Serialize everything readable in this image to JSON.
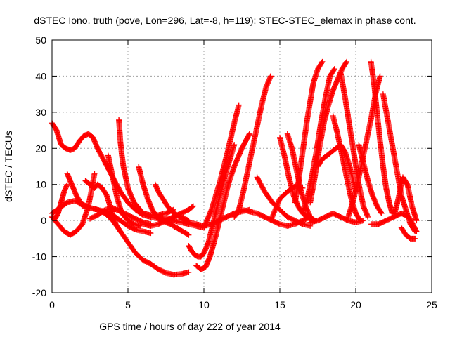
{
  "chart_data": {
    "type": "scatter",
    "title": "dSTEC Iono. truth (pove, Lon=296, Lat=-8, h=119): STEC-STEC_elemax in phase cont.",
    "xlabel": "GPS time / hours of day 222 of year 2014",
    "ylabel": "dSTEC  / TECUs",
    "xlim": [
      0,
      25
    ],
    "ylim": [
      -20,
      50
    ],
    "xticks": [
      0,
      5,
      10,
      15,
      20,
      25
    ],
    "yticks": [
      -20,
      -10,
      0,
      10,
      20,
      30,
      40,
      50
    ],
    "grid": true,
    "legend": "none",
    "marker": "plus",
    "color": "#ff0000",
    "series": [
      {
        "x": [
          0.0,
          0.3,
          0.6,
          0.9,
          1.2,
          1.5,
          1.8,
          2.1,
          2.4,
          2.7,
          3.0,
          3.5,
          4.0,
          4.5,
          5.0,
          5.5,
          6.0,
          6.5,
          7.0,
          7.5,
          8.0
        ],
        "y": [
          27,
          25,
          21,
          20,
          19.5,
          20,
          22,
          23.5,
          24,
          23,
          20,
          16,
          12,
          8,
          5,
          3,
          1.5,
          1,
          0.5,
          0.3,
          0.2
        ]
      },
      {
        "x": [
          0.0,
          0.2,
          0.4,
          0.6,
          0.8,
          1.0
        ],
        "y": [
          1,
          0.5,
          2,
          5,
          8,
          10
        ]
      },
      {
        "x": [
          0.0,
          0.5,
          1.0,
          1.5,
          2.0,
          2.5,
          3.0,
          3.5,
          4.0,
          4.5,
          5.0,
          5.5,
          6.0,
          6.5,
          7.0,
          7.5,
          8.0,
          8.5,
          9.0
        ],
        "y": [
          2,
          3.5,
          5,
          5.5,
          4.5,
          3.5,
          3,
          2,
          0,
          -3,
          -6,
          -9,
          -11,
          -12,
          -13.5,
          -14.5,
          -15,
          -14.8,
          -14.3
        ]
      },
      {
        "x": [
          0.0,
          0.4,
          0.8,
          1.2,
          1.6,
          2.0,
          2.4,
          2.8
        ],
        "y": [
          1,
          -1,
          -3,
          -4,
          -3,
          -1,
          4,
          13
        ]
      },
      {
        "x": [
          1.0,
          1.3,
          1.6,
          2.0,
          2.5,
          3.0,
          3.5,
          4.0,
          4.5,
          5.0,
          5.5,
          6.0,
          6.5
        ],
        "y": [
          13,
          10,
          7,
          4,
          3.5,
          3,
          2.5,
          1.5,
          0,
          -1.5,
          -2.5,
          -3,
          -3.5
        ]
      },
      {
        "x": [
          2.2,
          2.5,
          2.8,
          3.0,
          3.3,
          3.6,
          3.9,
          4.2,
          4.5
        ],
        "y": [
          11,
          10,
          9,
          10,
          9,
          7,
          3,
          -1,
          -3
        ]
      },
      {
        "x": [
          2.5,
          3.0,
          3.5,
          4.0,
          4.5,
          5.0,
          5.5,
          6.0,
          6.5
        ],
        "y": [
          0.5,
          1.5,
          3,
          3.5,
          2.5,
          1.5,
          0.5,
          -0.5,
          -1
        ]
      },
      {
        "x": [
          3.7,
          4.0,
          4.3,
          4.6,
          5.0,
          5.4,
          5.8
        ],
        "y": [
          18,
          12,
          6,
          2,
          0,
          -1,
          -1.5
        ]
      },
      {
        "x": [
          4.4,
          4.5,
          4.6,
          4.7,
          4.8,
          4.9,
          5.0,
          5.2,
          5.4,
          5.6,
          5.8,
          6.0,
          6.5,
          7.0,
          7.5,
          8.0
        ],
        "y": [
          28,
          22,
          18,
          15,
          13,
          11,
          9,
          7,
          5,
          4,
          3,
          2,
          1.5,
          1.5,
          2,
          3
        ]
      },
      {
        "x": [
          5.7,
          6.0,
          6.3,
          6.6,
          6.9,
          7.2,
          7.5,
          7.8,
          8.2,
          8.6,
          9.0
        ],
        "y": [
          15,
          10,
          6,
          3,
          1,
          0,
          -0.5,
          -1,
          -2,
          -3,
          -4
        ]
      },
      {
        "x": [
          6.0,
          6.5,
          7.0,
          7.5,
          8.0,
          8.5,
          9.0,
          9.3
        ],
        "y": [
          -1,
          -1.5,
          -1,
          0,
          1,
          2,
          3,
          4
        ]
      },
      {
        "x": [
          6.8,
          7.0,
          7.3,
          7.6,
          8.0,
          8.5,
          9.0
        ],
        "y": [
          10,
          8,
          6,
          4,
          2,
          1,
          0
        ]
      },
      {
        "x": [
          7.0,
          7.5,
          8.0,
          8.5,
          9.0,
          9.5,
          10.0,
          10.5,
          11.0,
          11.5,
          12.0,
          12.3
        ],
        "y": [
          1,
          0.5,
          0,
          -0.5,
          -1,
          -1.5,
          -2,
          3,
          10,
          18,
          27,
          32
        ]
      },
      {
        "x": [
          9.0,
          9.2,
          9.4,
          9.6,
          9.8,
          10.0,
          10.3,
          10.6,
          11.0,
          11.5,
          12.0
        ],
        "y": [
          -7,
          -8.5,
          -9.5,
          -10,
          -10,
          -9,
          -6,
          -1,
          6,
          14,
          21
        ]
      },
      {
        "x": [
          9.5,
          9.8,
          10.1,
          10.4,
          10.8,
          11.2,
          11.6,
          12.0,
          12.5,
          13.0
        ],
        "y": [
          -12.5,
          -13.5,
          -13,
          -10,
          -4,
          3,
          10,
          15,
          20,
          24
        ]
      },
      {
        "x": [
          8.5,
          9.0,
          9.5,
          10.0,
          10.5,
          11.0,
          11.5,
          12.0,
          12.5,
          13.0
        ],
        "y": [
          0.5,
          -0.5,
          -1,
          -1.5,
          -1,
          0,
          1,
          2,
          2.5,
          3
        ]
      },
      {
        "x": [
          12.0,
          12.3,
          12.6,
          12.9,
          13.2,
          13.5,
          13.8,
          14.1,
          14.4
        ],
        "y": [
          1,
          3,
          8,
          14,
          20,
          26,
          32,
          37,
          40
        ]
      },
      {
        "x": [
          12.5,
          13.0,
          13.5,
          14.0,
          14.5,
          15.0,
          15.5,
          16.0,
          16.5,
          17.0
        ],
        "y": [
          3,
          2.5,
          2,
          1,
          0,
          -1,
          -1.5,
          -1,
          0,
          1
        ]
      },
      {
        "x": [
          13.5,
          14.0,
          14.5,
          15.0,
          15.5,
          16.0,
          16.5,
          17.0
        ],
        "y": [
          12,
          8,
          5,
          3,
          1,
          0,
          -1,
          -1.5
        ]
      },
      {
        "x": [
          14.5,
          15.0,
          15.5,
          16.0,
          16.5
        ],
        "y": [
          1,
          6,
          8,
          9.5,
          9
        ]
      },
      {
        "x": [
          15.0,
          15.3,
          15.6,
          15.9,
          16.2,
          16.5,
          16.8,
          17.1,
          17.4
        ],
        "y": [
          23,
          18,
          12,
          7,
          4,
          2,
          1,
          0,
          0
        ]
      },
      {
        "x": [
          15.5,
          15.8,
          16.1,
          16.4,
          16.7,
          17.0,
          17.3
        ],
        "y": [
          24,
          20,
          14,
          8,
          4,
          1,
          0
        ]
      },
      {
        "x": [
          16.0,
          16.2,
          16.4,
          16.6,
          16.8,
          17.0,
          17.2,
          17.5,
          17.8
        ],
        "y": [
          5,
          10,
          16,
          22,
          28,
          33,
          38,
          42,
          44
        ]
      },
      {
        "x": [
          16.5,
          16.8,
          17.1,
          17.4,
          17.7,
          18.0,
          18.3,
          18.6
        ],
        "y": [
          2,
          6,
          12,
          19,
          27,
          34,
          40,
          42
        ]
      },
      {
        "x": [
          17.0,
          17.3,
          17.6,
          17.9,
          18.2,
          18.5,
          18.8,
          19.1,
          19.4
        ],
        "y": [
          5,
          12,
          20,
          27,
          32,
          36,
          39,
          42,
          44
        ]
      },
      {
        "x": [
          17.5,
          17.8,
          18.1,
          18.4,
          18.7,
          19.0,
          19.3,
          19.6,
          20.0
        ],
        "y": [
          15,
          17,
          18,
          19,
          20,
          21,
          19,
          15,
          8
        ]
      },
      {
        "x": [
          18.5,
          18.8,
          19.1,
          19.4,
          19.7,
          20.0,
          20.3
        ],
        "y": [
          29,
          24,
          18,
          12,
          6,
          2,
          0
        ]
      },
      {
        "x": [
          19.0,
          19.3,
          19.6,
          19.9,
          20.2,
          20.5,
          20.8
        ],
        "y": [
          41,
          34,
          26,
          18,
          10,
          4,
          1
        ]
      },
      {
        "x": [
          19.5,
          19.8,
          20.1,
          20.4,
          20.7,
          21.0,
          21.3,
          21.6
        ],
        "y": [
          1,
          5,
          10,
          16,
          22,
          28,
          35,
          40
        ]
      },
      {
        "x": [
          20.2,
          20.5,
          20.8,
          21.1,
          21.4,
          21.7
        ],
        "y": [
          21,
          16,
          11,
          7,
          4,
          2
        ]
      },
      {
        "x": [
          21.0,
          21.2,
          21.4,
          21.6,
          21.8,
          22.0,
          22.2,
          22.4
        ],
        "y": [
          44,
          38,
          30,
          22,
          15,
          9,
          5,
          2
        ]
      },
      {
        "x": [
          21.0,
          21.5,
          22.0,
          22.5,
          23.0,
          23.5,
          24.0
        ],
        "y": [
          -1,
          -1,
          0,
          1,
          2,
          1,
          -3
        ]
      },
      {
        "x": [
          21.8,
          22.1,
          22.4,
          22.7,
          23.0,
          23.3,
          23.6,
          23.9
        ],
        "y": [
          35,
          28,
          21,
          14,
          7,
          3,
          -1,
          -3
        ]
      },
      {
        "x": [
          22.5,
          22.8,
          23.1,
          23.4,
          23.7,
          24.0
        ],
        "y": [
          1,
          6,
          12,
          10,
          4,
          0
        ]
      },
      {
        "x": [
          23.0,
          23.3,
          23.6,
          23.9
        ],
        "y": [
          -2,
          -4,
          -5,
          -5
        ]
      },
      {
        "x": [
          17.0,
          17.5,
          18.0,
          18.5,
          19.0,
          19.5,
          20.0,
          20.5
        ],
        "y": [
          -0.5,
          0,
          1,
          2,
          1,
          0,
          -0.5,
          0
        ]
      }
    ]
  }
}
